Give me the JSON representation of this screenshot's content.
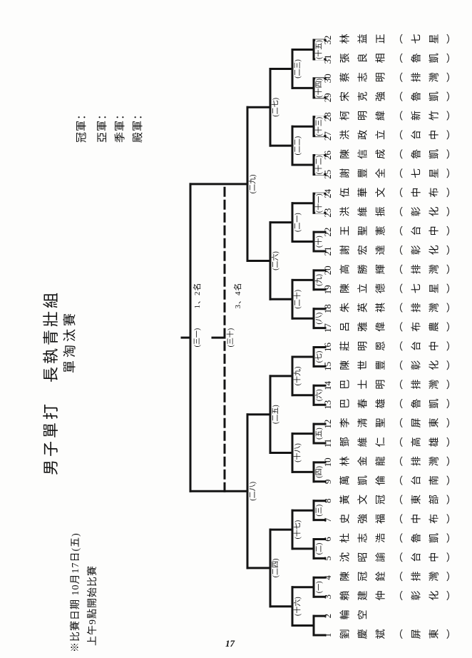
{
  "page": {
    "number": "17"
  },
  "header": {
    "title": "男子單打　長執青壯組",
    "subtitle": "單淘汰賽",
    "notes": [
      "※比賽日期 10月17日(五)",
      "上午9點開始比賽"
    ],
    "prizes": [
      "冠軍：",
      "亞軍：",
      "季軍：",
      "殿軍："
    ]
  },
  "bracket": {
    "final_label": "(三一)",
    "third_label": "(三十)",
    "final_caption": "1、2名",
    "third_caption": "3、4名",
    "round1_labels": [
      "(一)",
      "(二)",
      "(三)",
      "(四)",
      "(五)",
      "(六)",
      "(七)",
      "(八)",
      "(九)",
      "(十)",
      "(十一)",
      "(十二)",
      "(十三)",
      "(十四)",
      "(十五)"
    ],
    "round2_labels": [
      "(十六)",
      "(十七)",
      "(十八)",
      "(十九)",
      "(二十)",
      "(二一)",
      "(二二)",
      "(二三)"
    ],
    "quarter_labels": [
      "(二四)",
      "(二五)",
      "(二六)",
      "(二七)"
    ],
    "semi_labels": [
      "(二八)",
      "(二九)"
    ],
    "entries": [
      {
        "no": "1",
        "name": "劉慶斌",
        "team": "屏東"
      },
      {
        "no": "2",
        "name": "輪空",
        "team": ""
      },
      {
        "no": "3",
        "name": "賴建仲",
        "team": "彰化"
      },
      {
        "no": "4",
        "name": "陳冠銓",
        "team": "排灣"
      },
      {
        "no": "5",
        "name": "沈昭諭",
        "team": "台中"
      },
      {
        "no": "6",
        "name": "杜志浩",
        "team": "魯凱"
      },
      {
        "no": "7",
        "name": "史強福",
        "team": "中布"
      },
      {
        "no": "8",
        "name": "黃文冠",
        "team": "東部"
      },
      {
        "no": "9",
        "name": "萬凱倫",
        "team": "台南"
      },
      {
        "no": "10",
        "name": "林金龍",
        "team": "排灣"
      },
      {
        "no": "11",
        "name": "鄧維仁",
        "team": "高雄"
      },
      {
        "no": "12",
        "name": "李清聖",
        "team": "屏東"
      },
      {
        "no": "13",
        "name": "巴春雄",
        "team": "魯凱"
      },
      {
        "no": "14",
        "name": "巴士明",
        "team": "排灣"
      },
      {
        "no": "15",
        "name": "陳世豐",
        "team": "彰化"
      },
      {
        "no": "16",
        "name": "莊明恩",
        "team": "台中"
      },
      {
        "no": "17",
        "name": "呂雅偉",
        "team": "布農"
      },
      {
        "no": "18",
        "name": "朱英祺",
        "team": "排灣"
      },
      {
        "no": "19",
        "name": "陳立德",
        "team": "七星"
      },
      {
        "no": "20",
        "name": "高勝輝",
        "team": "排灣"
      },
      {
        "no": "21",
        "name": "謝宏達",
        "team": "彰化"
      },
      {
        "no": "22",
        "name": "王聖憲",
        "team": "台中"
      },
      {
        "no": "23",
        "name": "洪維振",
        "team": "彰化"
      },
      {
        "no": "24",
        "name": "伍華文",
        "team": "中布"
      },
      {
        "no": "25",
        "name": "謝豐全",
        "team": "七星"
      },
      {
        "no": "26",
        "name": "陳信成",
        "team": "魯凱"
      },
      {
        "no": "27",
        "name": "洪政立",
        "team": "台中"
      },
      {
        "no": "28",
        "name": "柯明緯",
        "team": "新竹"
      },
      {
        "no": "29",
        "name": "宋克強",
        "team": "魯凱"
      },
      {
        "no": "30",
        "name": "蔡志明",
        "team": "排灣"
      },
      {
        "no": "31",
        "name": "張良相",
        "team": "魯凱"
      },
      {
        "no": "32",
        "name": "林益正",
        "team": "七星"
      }
    ]
  }
}
